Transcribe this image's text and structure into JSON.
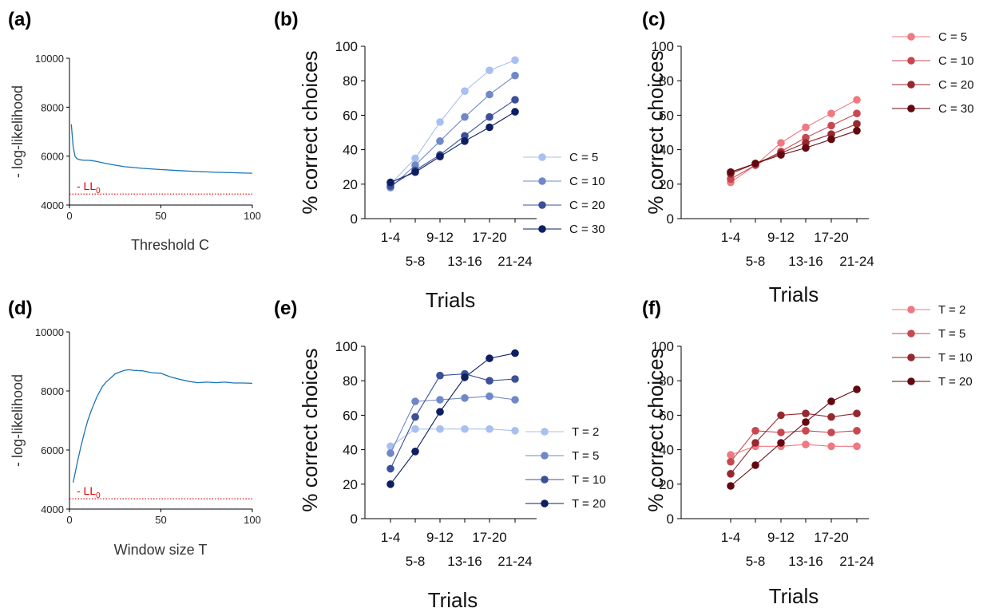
{
  "colors": {
    "blue": [
      "#a8c0f0",
      "#7088c8",
      "#3a5098",
      "#0e1e62"
    ],
    "red": [
      "#f07880",
      "#c84850",
      "#962830",
      "#640810"
    ],
    "ll_line": "#1a74b8",
    "ll0": "#e00000"
  },
  "chart_data": [
    {
      "id": "a",
      "panel_label": "(a)",
      "type": "line",
      "xlabel": "Threshold C",
      "ylabel": "- log-likelihood",
      "xlim": [
        0,
        100
      ],
      "ylim": [
        4000,
        10000
      ],
      "xticks": [
        0,
        50,
        100
      ],
      "yticks": [
        4000,
        6000,
        8000,
        10000
      ],
      "ll0_label": "- LL",
      "ll0_subscript": "0",
      "ll0_value": 4450,
      "x": [
        1,
        2,
        3,
        4,
        5,
        6,
        8,
        10,
        12,
        15,
        20,
        25,
        30,
        40,
        50,
        60,
        70,
        80,
        90,
        100
      ],
      "y": [
        7300,
        6400,
        6000,
        5900,
        5870,
        5850,
        5830,
        5830,
        5820,
        5780,
        5700,
        5630,
        5570,
        5500,
        5450,
        5410,
        5370,
        5340,
        5320,
        5300
      ]
    },
    {
      "id": "b",
      "panel_label": "(b)",
      "type": "line",
      "xlabel": "Trials",
      "ylabel": "% correct choices",
      "ylim": [
        0,
        100
      ],
      "yticks": [
        0,
        20,
        40,
        60,
        80,
        100
      ],
      "categories": [
        "1-4",
        "5-8",
        "9-12",
        "13-16",
        "17-20",
        "21-24"
      ],
      "series": [
        {
          "name": "C = 5",
          "values": [
            20,
            35,
            56,
            74,
            86,
            92
          ]
        },
        {
          "name": "C = 10",
          "values": [
            18,
            31,
            45,
            59,
            72,
            83
          ]
        },
        {
          "name": "C = 20",
          "values": [
            19,
            28,
            37,
            48,
            59,
            69
          ]
        },
        {
          "name": "C = 30",
          "values": [
            21,
            27,
            36,
            45,
            53,
            62
          ]
        }
      ]
    },
    {
      "id": "c",
      "panel_label": "(c)",
      "type": "line",
      "xlabel": "Trials",
      "ylabel": "% correct choices",
      "ylim": [
        0,
        100
      ],
      "yticks": [
        0,
        20,
        40,
        60,
        80,
        100
      ],
      "categories": [
        "1-4",
        "5-8",
        "9-12",
        "13-16",
        "17-20",
        "21-24"
      ],
      "series": [
        {
          "name": "C = 5",
          "values": [
            21,
            31,
            44,
            53,
            61,
            69
          ]
        },
        {
          "name": "C = 10",
          "values": [
            23,
            31,
            39,
            47,
            54,
            61
          ]
        },
        {
          "name": "C = 20",
          "values": [
            26,
            32,
            38,
            44,
            49,
            55
          ]
        },
        {
          "name": "C = 30",
          "values": [
            27,
            32,
            37,
            41,
            46,
            51
          ]
        }
      ]
    },
    {
      "id": "d",
      "panel_label": "(d)",
      "type": "line",
      "xlabel": "Window size T",
      "ylabel": "- log-likelihood",
      "xlim": [
        0,
        100
      ],
      "ylim": [
        4000,
        10000
      ],
      "xticks": [
        0,
        50,
        100
      ],
      "yticks": [
        4000,
        6000,
        8000,
        10000
      ],
      "ll0_label": "- LL",
      "ll0_subscript": "0",
      "ll0_value": 4350,
      "x": [
        2,
        4,
        6,
        8,
        10,
        12,
        15,
        18,
        20,
        25,
        30,
        33,
        35,
        40,
        45,
        50,
        55,
        60,
        65,
        70,
        75,
        80,
        85,
        90,
        95,
        100
      ],
      "y": [
        4900,
        5500,
        6050,
        6550,
        7000,
        7350,
        7800,
        8150,
        8300,
        8580,
        8700,
        8720,
        8700,
        8680,
        8620,
        8600,
        8480,
        8400,
        8330,
        8280,
        8300,
        8280,
        8300,
        8270,
        8270,
        8260
      ]
    },
    {
      "id": "e",
      "panel_label": "(e)",
      "type": "line",
      "xlabel": "Trials",
      "ylabel": "% correct choices",
      "ylim": [
        0,
        100
      ],
      "yticks": [
        0,
        20,
        40,
        60,
        80,
        100
      ],
      "categories": [
        "1-4",
        "5-8",
        "9-12",
        "13-16",
        "17-20",
        "21-24"
      ],
      "series": [
        {
          "name": "T = 2",
          "values": [
            42,
            52,
            52,
            52,
            52,
            51
          ]
        },
        {
          "name": "T = 5",
          "values": [
            38,
            68,
            69,
            70,
            71,
            69
          ]
        },
        {
          "name": "T = 10",
          "values": [
            29,
            59,
            83,
            84,
            80,
            81
          ]
        },
        {
          "name": "T = 20",
          "values": [
            20,
            39,
            62,
            82,
            93,
            96
          ]
        }
      ]
    },
    {
      "id": "f",
      "panel_label": "(f)",
      "type": "line",
      "xlabel": "Trials",
      "ylabel": "% correct choices",
      "ylim": [
        0,
        100
      ],
      "yticks": [
        0,
        20,
        40,
        60,
        80,
        100
      ],
      "categories": [
        "1-4",
        "5-8",
        "9-12",
        "13-16",
        "17-20",
        "21-24"
      ],
      "series": [
        {
          "name": "T = 2",
          "values": [
            37,
            42,
            42,
            43,
            42,
            42
          ]
        },
        {
          "name": "T = 5",
          "values": [
            33,
            51,
            50,
            51,
            50,
            51
          ]
        },
        {
          "name": "T = 10",
          "values": [
            26,
            44,
            60,
            61,
            59,
            61
          ]
        },
        {
          "name": "T = 20",
          "values": [
            19,
            31,
            44,
            56,
            68,
            75
          ]
        }
      ]
    }
  ]
}
